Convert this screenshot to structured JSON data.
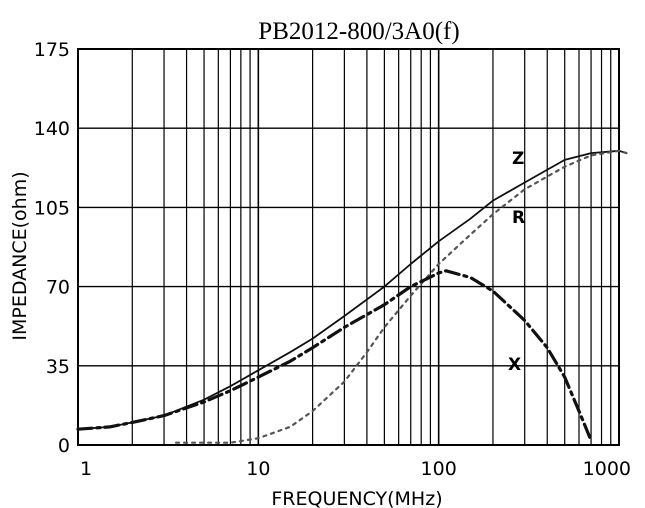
{
  "chart_data": {
    "type": "line",
    "title": "PB2012-800/3A0(f)",
    "xlabel": "FREQUENCY(MHz)",
    "ylabel": "IMPEDANCE(ohm)",
    "xscale": "log",
    "xlim": [
      1,
      1000
    ],
    "ylim": [
      0,
      175
    ],
    "x_tick_labels": [
      "1",
      "10",
      "100",
      "1000"
    ],
    "y_tick_labels": [
      "0",
      "35",
      "70",
      "105",
      "140",
      "175"
    ],
    "grid": true,
    "series": [
      {
        "name": "Z",
        "style": "solid",
        "points": [
          [
            1,
            7
          ],
          [
            1.5,
            8
          ],
          [
            2,
            10
          ],
          [
            3,
            13
          ],
          [
            5,
            20
          ],
          [
            7,
            26
          ],
          [
            10,
            33
          ],
          [
            15,
            41
          ],
          [
            20,
            47
          ],
          [
            30,
            57
          ],
          [
            50,
            70
          ],
          [
            70,
            80
          ],
          [
            100,
            90
          ],
          [
            150,
            100
          ],
          [
            200,
            108
          ],
          [
            300,
            116
          ],
          [
            500,
            126
          ],
          [
            700,
            129
          ],
          [
            1000,
            130
          ],
          [
            1100,
            129
          ]
        ]
      },
      {
        "name": "R",
        "style": "dotted",
        "points": [
          [
            3.5,
            1
          ],
          [
            7,
            1
          ],
          [
            10,
            3
          ],
          [
            15,
            8
          ],
          [
            20,
            15
          ],
          [
            30,
            28
          ],
          [
            40,
            41
          ],
          [
            50,
            52
          ],
          [
            70,
            66
          ],
          [
            100,
            80
          ],
          [
            150,
            93
          ],
          [
            200,
            102
          ],
          [
            300,
            113
          ],
          [
            500,
            123
          ],
          [
            700,
            128
          ],
          [
            1000,
            130
          ],
          [
            1100,
            129
          ]
        ]
      },
      {
        "name": "X",
        "style": "dash-dot",
        "points": [
          [
            1,
            7
          ],
          [
            1.5,
            8
          ],
          [
            2,
            10
          ],
          [
            3,
            13
          ],
          [
            5,
            19
          ],
          [
            7,
            24
          ],
          [
            10,
            30
          ],
          [
            15,
            37
          ],
          [
            20,
            43
          ],
          [
            30,
            52
          ],
          [
            50,
            62
          ],
          [
            70,
            70
          ],
          [
            100,
            76
          ],
          [
            110,
            77
          ],
          [
            150,
            74
          ],
          [
            200,
            68
          ],
          [
            300,
            55
          ],
          [
            400,
            43
          ],
          [
            500,
            30
          ],
          [
            600,
            15
          ],
          [
            700,
            2
          ]
        ]
      }
    ]
  }
}
